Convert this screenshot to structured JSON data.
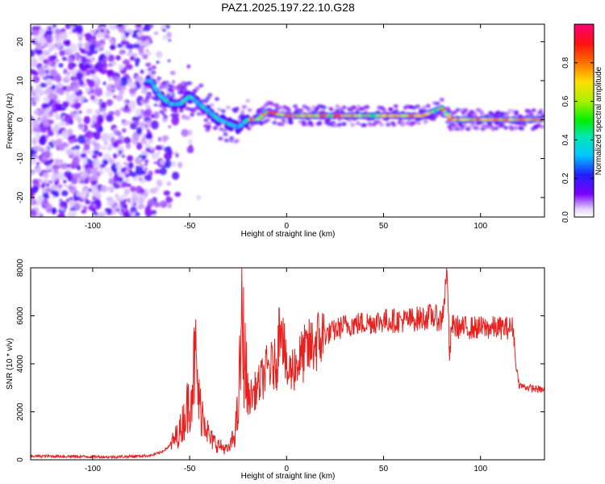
{
  "title": "PAZ1.2025.197.22.10.G28",
  "colors": {
    "snr_line": "#e8201e",
    "background": "#ffffff",
    "frame": "#000000"
  },
  "chart_data": [
    {
      "type": "heatmap",
      "xlabel": "Height of straight line (km)",
      "ylabel": "Frequency (Hz)",
      "xlim": [
        -132,
        133
      ],
      "ylim": [
        -25,
        24.5
      ],
      "x_ticks": [
        -100,
        -50,
        0,
        50,
        100
      ],
      "y_ticks": [
        -20,
        -10,
        0,
        10,
        20
      ],
      "grid": false,
      "colormap": "rainbow (purple→blue→cyan→green→yellow→red→magenta)",
      "colorbar": {
        "label": "Normalized spectral amplitude",
        "ticks": [
          "0.0",
          "0.2",
          "0.4",
          "0.6",
          "0.8"
        ],
        "range": [
          0,
          1
        ]
      },
      "ridge": {
        "x": [
          -70,
          -65,
          -60,
          -55,
          -50,
          -45,
          -40,
          -35,
          -30,
          -25,
          -20,
          -15,
          -10,
          0,
          10,
          20,
          30,
          40,
          50,
          60,
          70,
          75,
          80,
          85,
          90,
          100,
          110,
          120,
          133
        ],
        "y": [
          10,
          6,
          4,
          4,
          6,
          4,
          2,
          0,
          -1,
          -2,
          0,
          0,
          2,
          1,
          1,
          1,
          1,
          1,
          1,
          1,
          1,
          2,
          3,
          0,
          0,
          0,
          0,
          0,
          0
        ]
      }
    },
    {
      "type": "line",
      "xlabel": "Height of straight line (km)",
      "ylabel": "SNR (10 * v/v)",
      "xlim": [
        -132,
        133
      ],
      "ylim": [
        0,
        8000
      ],
      "x_ticks": [
        -100,
        -50,
        0,
        50,
        100
      ],
      "y_ticks": [
        0,
        2000,
        4000,
        6000,
        8000
      ],
      "grid": false,
      "series": [
        {
          "x": [
            -132,
            -120,
            -110,
            -100,
            -90,
            -80,
            -70,
            -65,
            -60,
            -55,
            -50,
            -47,
            -45,
            -42,
            -40,
            -35,
            -30,
            -27,
            -25,
            -23,
            -20,
            -15,
            -10,
            -5,
            -3,
            0,
            5,
            10,
            15,
            20,
            25,
            30,
            40,
            50,
            60,
            70,
            75,
            80,
            83,
            84,
            85,
            90,
            100,
            110,
            117,
            118,
            120,
            125,
            133
          ],
          "values": [
            150,
            150,
            140,
            130,
            120,
            140,
            180,
            300,
            600,
            1200,
            2500,
            4200,
            2200,
            1800,
            900,
            600,
            400,
            1000,
            2000,
            5800,
            2500,
            3000,
            3800,
            4000,
            6400,
            3500,
            4000,
            4500,
            4900,
            5200,
            5400,
            5600,
            5700,
            5800,
            5800,
            5900,
            6000,
            5800,
            7900,
            4000,
            5600,
            5500,
            5500,
            5500,
            5500,
            4100,
            3100,
            3000,
            2900
          ]
        }
      ]
    }
  ]
}
